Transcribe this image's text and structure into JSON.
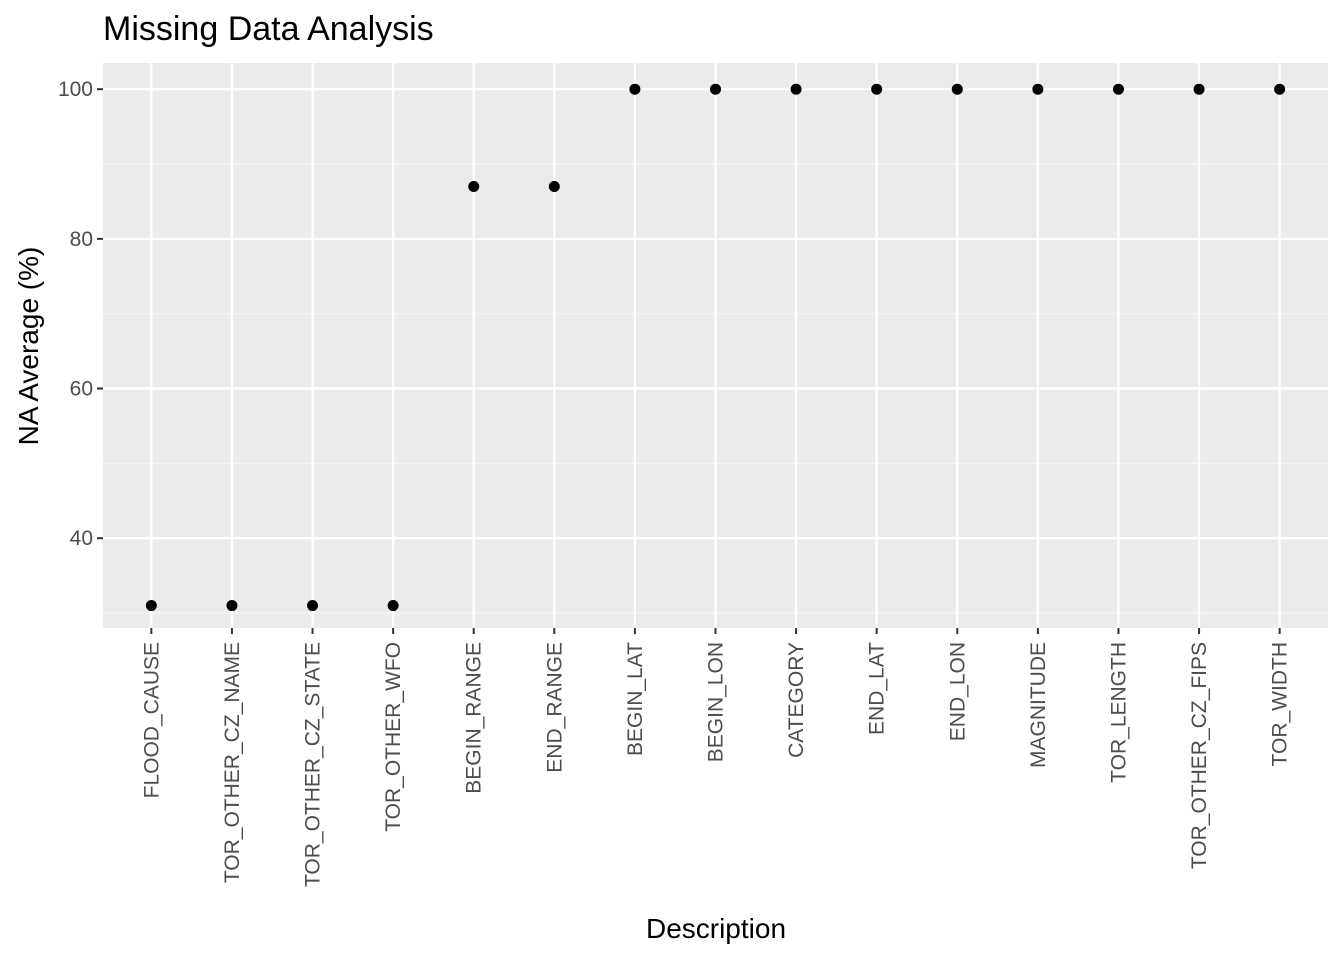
{
  "chart_data": {
    "type": "scatter",
    "title": "Missing Data Analysis",
    "xlabel": "Description",
    "ylabel": "NA Average (%)",
    "categories": [
      "FLOOD_CAUSE",
      "TOR_OTHER_CZ_NAME",
      "TOR_OTHER_CZ_STATE",
      "TOR_OTHER_WFO",
      "BEGIN_RANGE",
      "END_RANGE",
      "BEGIN_LAT",
      "BEGIN_LON",
      "CATEGORY",
      "END_LAT",
      "END_LON",
      "MAGNITUDE",
      "TOR_LENGTH",
      "TOR_OTHER_CZ_FIPS",
      "TOR_WIDTH"
    ],
    "values": [
      31,
      31,
      31,
      31,
      87,
      87,
      100,
      100,
      100,
      100,
      100,
      100,
      100,
      100,
      100
    ],
    "ylim": [
      28,
      103.5
    ],
    "y_ticks": [
      40,
      60,
      80,
      100
    ],
    "y_tick_labels": [
      "40",
      "60",
      "80",
      "100"
    ],
    "grid": true,
    "colors": {
      "panel_background": "#ebebeb",
      "grid_major": "#ffffff",
      "grid_minor": "#f5f5f5",
      "point": "#000000",
      "tick": "#333333"
    }
  }
}
